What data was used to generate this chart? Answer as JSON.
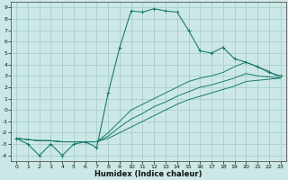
{
  "title": "",
  "xlabel": "Humidex (Indice chaleur)",
  "xlim": [
    -0.5,
    23.5
  ],
  "ylim": [
    -4.5,
    9.5
  ],
  "xticks": [
    0,
    1,
    2,
    3,
    4,
    5,
    6,
    7,
    8,
    9,
    10,
    11,
    12,
    13,
    14,
    15,
    16,
    17,
    18,
    19,
    20,
    21,
    22,
    23
  ],
  "yticks": [
    -4,
    -3,
    -2,
    -1,
    0,
    1,
    2,
    3,
    4,
    5,
    6,
    7,
    8,
    9
  ],
  "background_color": "#cce8e6",
  "grid_color": "#a8ceca",
  "line_color": "#1a7a6e",
  "line1_x": [
    0,
    1,
    2,
    3,
    4,
    5,
    6,
    7,
    8,
    9,
    10,
    11,
    12,
    13,
    14,
    15,
    16,
    17,
    18,
    19,
    20,
    21,
    22,
    23
  ],
  "line1_y": [
    -2.5,
    -3.0,
    -4.0,
    -3.0,
    -4.0,
    -3.0,
    -2.8,
    -3.3,
    1.5,
    5.5,
    8.7,
    8.6,
    8.9,
    8.7,
    8.6,
    7.0,
    5.2,
    5.0,
    5.5,
    4.5,
    4.2,
    3.8,
    3.3,
    3.0
  ],
  "line2_x": [
    0,
    1,
    2,
    3,
    4,
    5,
    6,
    7,
    8,
    9,
    10,
    11,
    12,
    13,
    14,
    15,
    16,
    17,
    18,
    19,
    20,
    21,
    22,
    23
  ],
  "line2_y": [
    -2.5,
    -2.6,
    -2.7,
    -2.7,
    -2.8,
    -2.8,
    -2.8,
    -2.8,
    -2.5,
    -2.0,
    -1.5,
    -1.0,
    -0.5,
    0.0,
    0.5,
    0.9,
    1.2,
    1.5,
    1.8,
    2.1,
    2.5,
    2.6,
    2.7,
    2.8
  ],
  "line3_x": [
    0,
    1,
    2,
    3,
    4,
    5,
    6,
    7,
    8,
    9,
    10,
    11,
    12,
    13,
    14,
    15,
    16,
    17,
    18,
    19,
    20,
    21,
    22,
    23
  ],
  "line3_y": [
    -2.5,
    -2.6,
    -2.7,
    -2.7,
    -2.8,
    -2.8,
    -2.8,
    -2.8,
    -2.3,
    -1.5,
    -0.8,
    -0.3,
    0.3,
    0.7,
    1.2,
    1.6,
    2.0,
    2.2,
    2.5,
    2.8,
    3.2,
    3.0,
    2.9,
    2.8
  ],
  "line4_x": [
    0,
    1,
    2,
    3,
    4,
    5,
    6,
    7,
    8,
    9,
    10,
    11,
    12,
    13,
    14,
    15,
    16,
    17,
    18,
    19,
    20,
    21,
    22,
    23
  ],
  "line4_y": [
    -2.5,
    -2.6,
    -2.7,
    -2.7,
    -2.8,
    -2.8,
    -2.8,
    -2.8,
    -2.0,
    -1.0,
    0.0,
    0.5,
    1.0,
    1.5,
    2.0,
    2.5,
    2.8,
    3.0,
    3.3,
    3.8,
    4.2,
    3.8,
    3.4,
    2.8
  ],
  "xlabel_fontsize": 6,
  "tick_fontsize": 4.5
}
